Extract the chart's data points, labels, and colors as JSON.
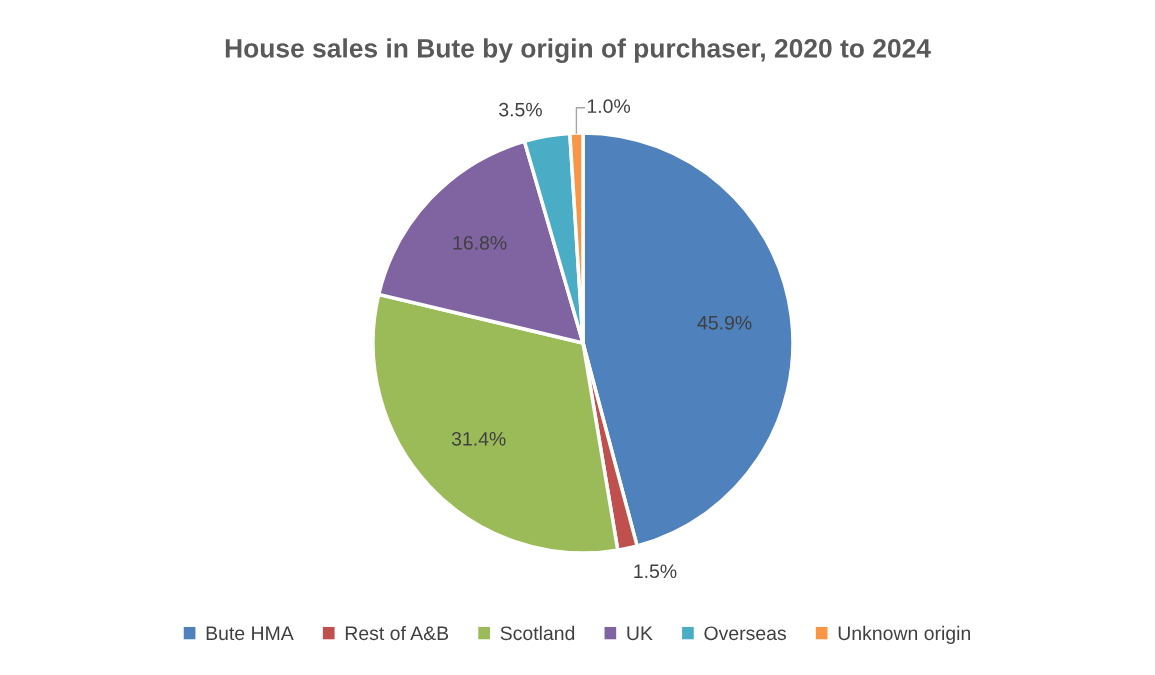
{
  "chart_data": {
    "type": "pie",
    "title": "House sales in Bute by origin of purchaser, 2020 to 2024",
    "categories": [
      "Bute HMA",
      "Rest of A&B",
      "Scotland",
      "UK",
      "Overseas",
      "Unknown origin"
    ],
    "values": [
      45.9,
      1.5,
      31.4,
      16.8,
      3.5,
      1.0
    ],
    "value_labels": [
      "45.9%",
      "1.5%",
      "31.4%",
      "16.8%",
      "3.5%",
      "1.0%"
    ],
    "colors": [
      "#4f81bd",
      "#c0504d",
      "#9bbb59",
      "#8064a2",
      "#4bacc6",
      "#f79646"
    ],
    "legend": "bottom"
  }
}
